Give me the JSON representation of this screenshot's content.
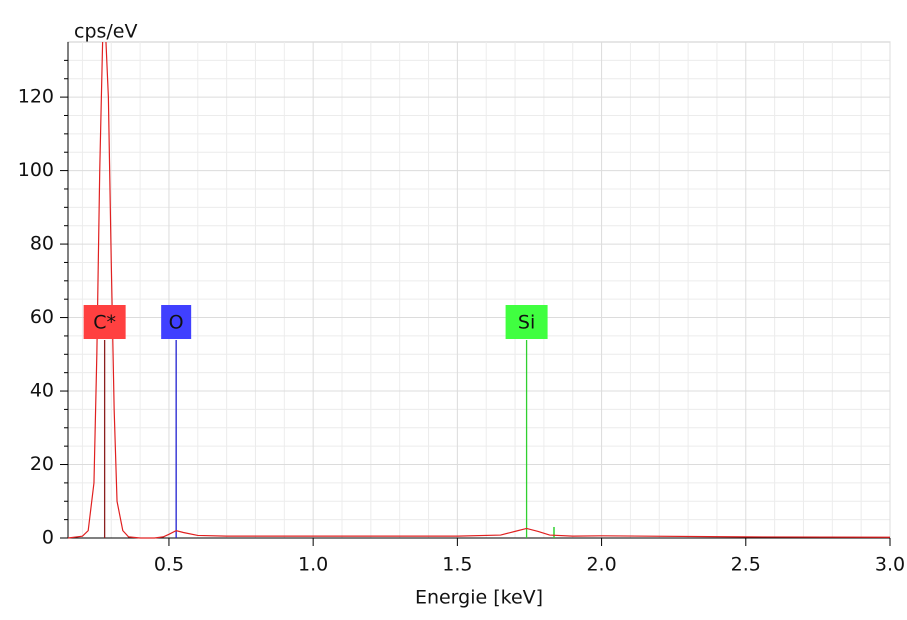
{
  "chart_data": {
    "type": "line",
    "x_label": "Energie [keV]",
    "y_label": "cps/eV",
    "color": "#e02020",
    "x": [
      0.15,
      0.2,
      0.22,
      0.24,
      0.25,
      0.26,
      0.27,
      0.28,
      0.29,
      0.3,
      0.31,
      0.32,
      0.34,
      0.36,
      0.4,
      0.45,
      0.48,
      0.5,
      0.525,
      0.55,
      0.6,
      0.7,
      1.0,
      1.5,
      1.65,
      1.7,
      1.74,
      1.78,
      1.82,
      1.9,
      2.0,
      2.5,
      3.0
    ],
    "values": [
      0,
      0.5,
      2,
      15,
      50,
      100,
      135,
      138,
      120,
      75,
      35,
      10,
      2,
      0.3,
      0,
      0,
      0.3,
      1,
      2,
      1.5,
      0.7,
      0.5,
      0.5,
      0.5,
      0.8,
      1.8,
      2.6,
      1.8,
      0.8,
      0.5,
      0.6,
      0.3,
      0.2
    ],
    "xlim": [
      0.15,
      3.0
    ],
    "ylim": [
      0,
      135
    ],
    "xticks": [
      0.5,
      {
        "value": 1,
        "label": "1.0"
      },
      1.5,
      {
        "value": 2,
        "label": "2.0"
      },
      2.5,
      {
        "value": 3,
        "label": "3.0"
      }
    ],
    "yticks": [
      0,
      20,
      40,
      60,
      80,
      100,
      120
    ],
    "xminor": [
      0.2,
      0.3,
      0.4,
      0.6,
      0.7,
      0.8,
      0.9,
      1.1,
      1.2,
      1.3,
      1.4,
      1.6,
      1.7,
      1.8,
      1.9,
      2.1,
      2.2,
      2.3,
      2.4,
      2.6,
      2.7,
      2.8,
      2.9
    ],
    "yminor": [
      5,
      10,
      15,
      25,
      30,
      35,
      45,
      50,
      55,
      65,
      70,
      75,
      85,
      90,
      95,
      105,
      110,
      115,
      125,
      130
    ],
    "grid": true,
    "elements": [
      {
        "label": "C*",
        "energy": 0.277,
        "color": "#ff4040",
        "line_color": "#8b2020"
      },
      {
        "label": "O",
        "energy": 0.525,
        "color": "#4040ff",
        "line_color": "#2020d0"
      },
      {
        "label": "Si",
        "energy": 1.74,
        "color": "#40ff40",
        "line_color": "#30d030",
        "minor_energy": 1.835,
        "minor_height": 3
      }
    ]
  }
}
